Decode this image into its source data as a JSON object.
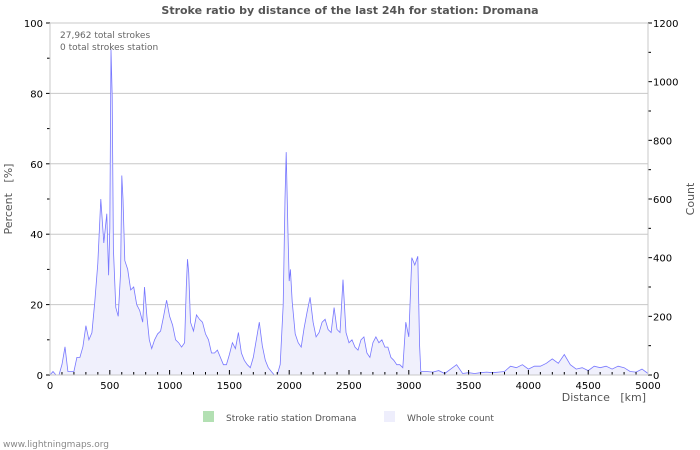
{
  "chart_data": {
    "type": "area",
    "title": "Stroke ratio by distance of the last 24h for station: Dromana",
    "xlabel": "Distance   [km]",
    "ylabel_left": "Percent   [%]",
    "ylabel_right": "Count",
    "xlim": [
      0,
      5000
    ],
    "ylim_left": [
      0,
      100
    ],
    "ylim_right": [
      0,
      1200
    ],
    "x_ticks": [
      "0",
      "500",
      "1000",
      "1500",
      "2000",
      "2500",
      "3000",
      "3500",
      "4000",
      "4500",
      "5000"
    ],
    "y_left_ticks": [
      "0",
      "20",
      "40",
      "60",
      "80",
      "100"
    ],
    "y_right_ticks": [
      "0",
      "200",
      "400",
      "600",
      "800",
      "1000",
      "1200"
    ],
    "grid": true,
    "annotations": [
      "27,962 total strokes",
      "0 total strokes station"
    ],
    "legend": [
      {
        "name": "Stroke ratio station Dromana",
        "color": "#b3e0b3"
      },
      {
        "name": "Whole stroke count",
        "color": "#eeeefc"
      }
    ],
    "legend_placement": "bottom",
    "series": [
      {
        "name": "Stroke ratio station Dromana",
        "axis": "left",
        "x": [],
        "values": []
      },
      {
        "name": "Whole stroke count",
        "axis": "right",
        "line_color": "#7777ff",
        "fill_color": "#f0f0fc",
        "x": [
          0,
          25,
          50,
          75,
          100,
          125,
          150,
          175,
          200,
          225,
          250,
          275,
          300,
          325,
          350,
          375,
          400,
          425,
          450,
          475,
          490,
          500,
          510,
          520,
          530,
          550,
          570,
          590,
          600,
          610,
          625,
          650,
          675,
          700,
          725,
          750,
          775,
          790,
          810,
          830,
          850,
          875,
          900,
          925,
          950,
          975,
          1000,
          1025,
          1050,
          1075,
          1100,
          1125,
          1140,
          1150,
          1160,
          1175,
          1200,
          1225,
          1250,
          1275,
          1300,
          1325,
          1350,
          1375,
          1400,
          1425,
          1450,
          1475,
          1500,
          1525,
          1550,
          1575,
          1600,
          1625,
          1650,
          1675,
          1700,
          1725,
          1750,
          1775,
          1800,
          1825,
          1850,
          1875,
          1900,
          1925,
          1950,
          1965,
          1975,
          1990,
          2000,
          2010,
          2025,
          2050,
          2075,
          2100,
          2125,
          2150,
          2175,
          2200,
          2225,
          2250,
          2275,
          2300,
          2325,
          2350,
          2375,
          2400,
          2425,
          2450,
          2475,
          2500,
          2525,
          2550,
          2575,
          2600,
          2625,
          2650,
          2675,
          2700,
          2725,
          2750,
          2775,
          2800,
          2825,
          2850,
          2875,
          2900,
          2925,
          2950,
          2975,
          3000,
          3025,
          3050,
          3075,
          3090,
          3100,
          3150,
          3200,
          3250,
          3300,
          3350,
          3400,
          3450,
          3500,
          3550,
          3600,
          3650,
          3700,
          3750,
          3800,
          3850,
          3900,
          3950,
          4000,
          4050,
          4100,
          4150,
          4200,
          4250,
          4300,
          4350,
          4400,
          4450,
          4500,
          4550,
          4600,
          4650,
          4700,
          4750,
          4800,
          4850,
          4900,
          4950,
          5000
        ],
        "values": [
          0,
          12,
          0,
          0,
          36,
          96,
          12,
          12,
          12,
          60,
          60,
          96,
          168,
          120,
          144,
          250,
          380,
          600,
          450,
          550,
          340,
          500,
          1110,
          950,
          430,
          230,
          200,
          350,
          680,
          600,
          390,
          360,
          290,
          300,
          240,
          220,
          180,
          300,
          200,
          120,
          90,
          120,
          140,
          150,
          200,
          255,
          200,
          170,
          120,
          110,
          95,
          110,
          300,
          395,
          350,
          180,
          150,
          205,
          190,
          180,
          140,
          120,
          75,
          75,
          85,
          60,
          35,
          35,
          70,
          110,
          90,
          145,
          75,
          50,
          35,
          25,
          60,
          120,
          180,
          100,
          50,
          25,
          12,
          0,
          0,
          36,
          240,
          600,
          760,
          480,
          320,
          360,
          250,
          140,
          110,
          95,
          160,
          215,
          265,
          180,
          130,
          145,
          180,
          190,
          155,
          145,
          230,
          155,
          145,
          325,
          145,
          110,
          120,
          95,
          85,
          120,
          130,
          75,
          60,
          110,
          130,
          110,
          120,
          95,
          95,
          60,
          50,
          35,
          35,
          25,
          180,
          130,
          400,
          375,
          405,
          100,
          12,
          12,
          10,
          15,
          5,
          20,
          35,
          5,
          8,
          5,
          8,
          10,
          8,
          10,
          12,
          30,
          25,
          35,
          20,
          30,
          30,
          40,
          55,
          40,
          70,
          35,
          20,
          25,
          15,
          30,
          25,
          30,
          20,
          30,
          25,
          12,
          10,
          20,
          5
        ]
      }
    ]
  },
  "footer": "www.lightningmaps.org"
}
